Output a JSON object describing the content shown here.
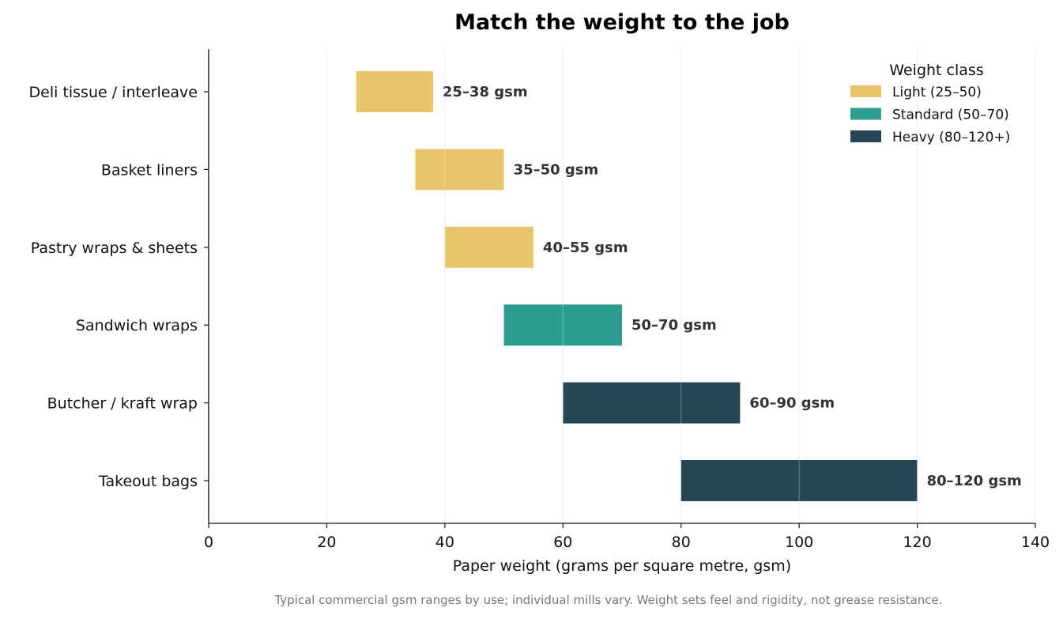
{
  "chart_data": {
    "type": "bar",
    "orientation": "horizontal-range",
    "title": "Match the weight to the job",
    "xlabel": "Paper weight (grams per square metre, gsm)",
    "ylabel": "",
    "xlim": [
      0,
      140
    ],
    "xticks": [
      0,
      20,
      40,
      60,
      80,
      100,
      120,
      140
    ],
    "grid": "vertical",
    "categories": [
      "Deli tissue / interleave",
      "Basket liners",
      "Pastry wraps & sheets",
      "Sandwich wraps",
      "Butcher / kraft wrap",
      "Takeout bags"
    ],
    "ranges": [
      {
        "start": 25,
        "end": 38,
        "class": "light",
        "label": "25–38 gsm"
      },
      {
        "start": 35,
        "end": 50,
        "class": "light",
        "label": "35–50 gsm"
      },
      {
        "start": 40,
        "end": 55,
        "class": "light",
        "label": "40–55 gsm"
      },
      {
        "start": 50,
        "end": 70,
        "class": "standard",
        "label": "50–70 gsm"
      },
      {
        "start": 60,
        "end": 90,
        "class": "heavy",
        "label": "60–90 gsm"
      },
      {
        "start": 80,
        "end": 120,
        "class": "heavy",
        "label": "80–120 gsm"
      }
    ],
    "legend": {
      "title": "Weight class",
      "placement": "top-right",
      "entries": [
        {
          "key": "light",
          "label": "Light (25–50)",
          "color": "#e9c46a"
        },
        {
          "key": "standard",
          "label": "Standard (50–70)",
          "color": "#2a9d8f"
        },
        {
          "key": "heavy",
          "label": "Heavy (80–120+)",
          "color": "#264653"
        }
      ]
    },
    "footnote": "Typical commercial gsm ranges by use; individual mills vary. Weight sets feel and rigidity, not grease resistance."
  }
}
